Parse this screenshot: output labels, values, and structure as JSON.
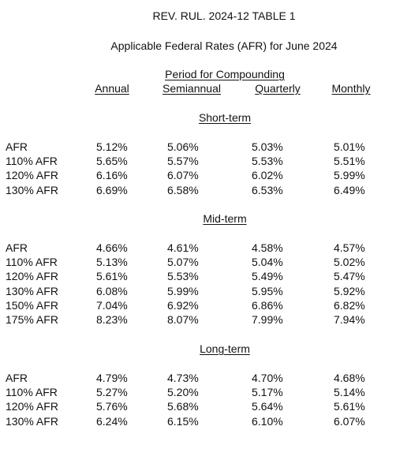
{
  "title": "REV. RUL. 2024-12 TABLE 1",
  "subtitle": "Applicable Federal Rates (AFR) for June 2024",
  "period_heading": "Period for Compounding",
  "columns": [
    "Annual",
    "Semiannual",
    "Quarterly",
    "Monthly"
  ],
  "sections": [
    {
      "name": "Short-term",
      "rows": [
        {
          "label": "AFR",
          "values": [
            "5.12%",
            "5.06%",
            "5.03%",
            "5.01%"
          ]
        },
        {
          "label": "110% AFR",
          "values": [
            "5.65%",
            "5.57%",
            "5.53%",
            "5.51%"
          ]
        },
        {
          "label": "120% AFR",
          "values": [
            "6.16%",
            "6.07%",
            "6.02%",
            "5.99%"
          ]
        },
        {
          "label": "130% AFR",
          "values": [
            "6.69%",
            "6.58%",
            "6.53%",
            "6.49%"
          ]
        }
      ]
    },
    {
      "name": "Mid-term",
      "rows": [
        {
          "label": "AFR",
          "values": [
            "4.66%",
            "4.61%",
            "4.58%",
            "4.57%"
          ]
        },
        {
          "label": "110% AFR",
          "values": [
            "5.13%",
            "5.07%",
            "5.04%",
            "5.02%"
          ]
        },
        {
          "label": "120% AFR",
          "values": [
            "5.61%",
            "5.53%",
            "5.49%",
            "5.47%"
          ]
        },
        {
          "label": "130% AFR",
          "values": [
            "6.08%",
            "5.99%",
            "5.95%",
            "5.92%"
          ]
        },
        {
          "label": "150% AFR",
          "values": [
            "7.04%",
            "6.92%",
            "6.86%",
            "6.82%"
          ]
        },
        {
          "label": "175% AFR",
          "values": [
            "8.23%",
            "8.07%",
            "7.99%",
            "7.94%"
          ]
        }
      ]
    },
    {
      "name": "Long-term",
      "rows": [
        {
          "label": "AFR",
          "values": [
            "4.79%",
            "4.73%",
            "4.70%",
            "4.68%"
          ]
        },
        {
          "label": "110% AFR",
          "values": [
            "5.27%",
            "5.20%",
            "5.17%",
            "5.14%"
          ]
        },
        {
          "label": "120% AFR",
          "values": [
            "5.76%",
            "5.68%",
            "5.64%",
            "5.61%"
          ]
        },
        {
          "label": "130% AFR",
          "values": [
            "6.24%",
            "6.15%",
            "6.10%",
            "6.07%"
          ]
        }
      ]
    }
  ]
}
